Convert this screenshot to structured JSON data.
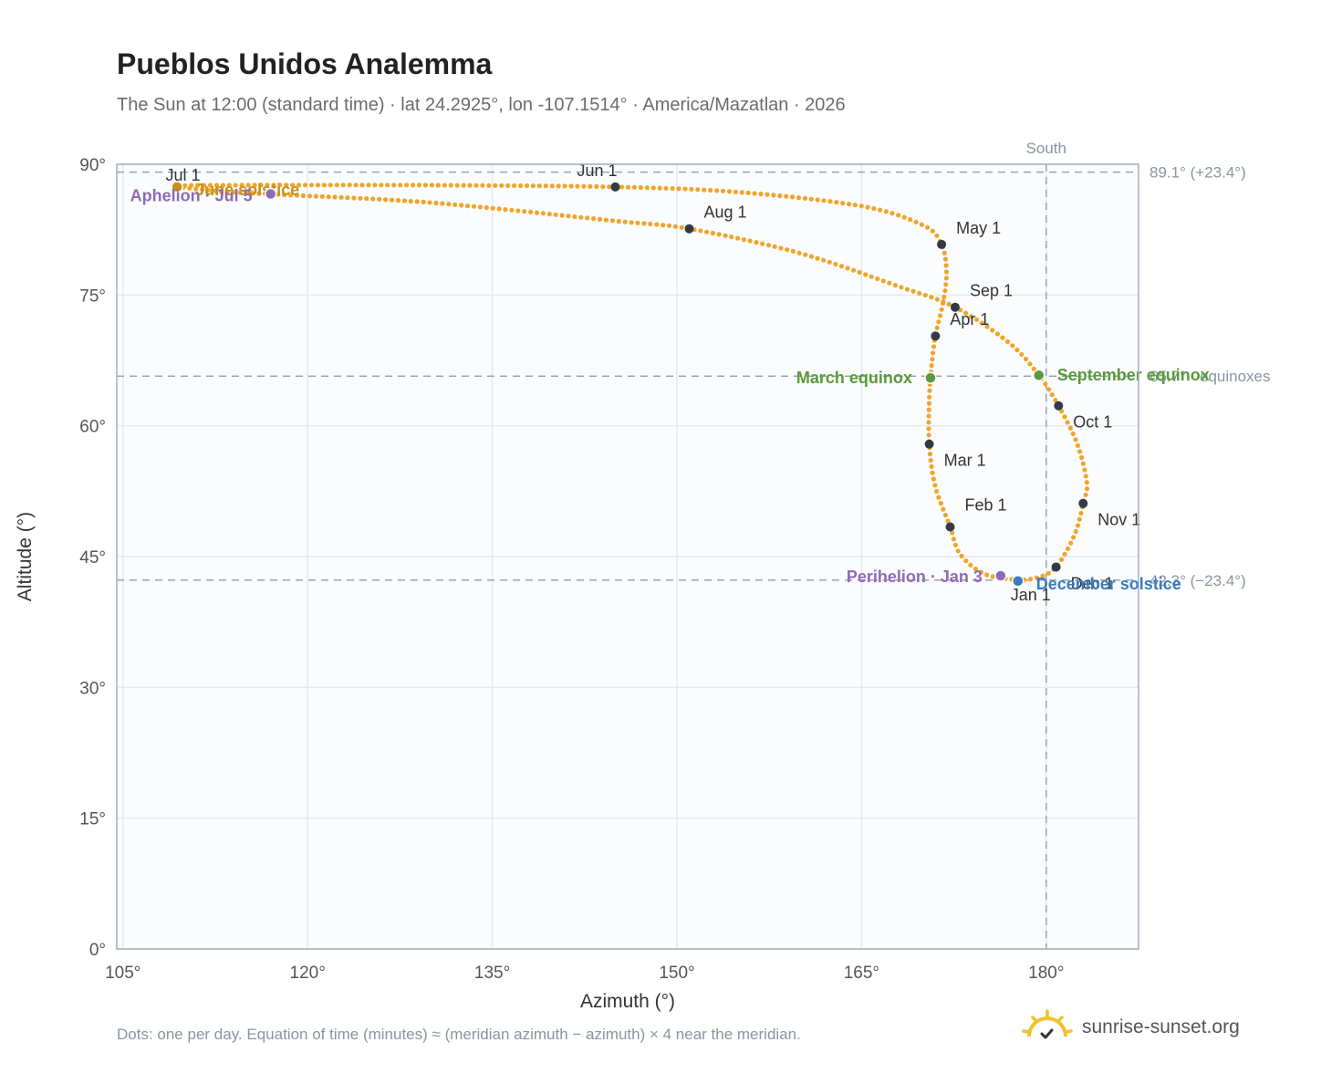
{
  "header": {
    "title": "Pueblos Unidos Analemma",
    "subtitle": "The Sun at 12:00 (standard time) · lat 24.2925°, lon -107.1514° · America/Mazatlan · 2026"
  },
  "footer": {
    "note": "Dots: one per day. Equation of time (minutes) ≈ (meridian azimuth − azimuth) × 4 near the meridian.",
    "brand": "sunrise-sunset.org"
  },
  "colors": {
    "curve": "#f0a52a",
    "month_dot": "#333a44",
    "equinox": "#5a9a3a",
    "december_solstice": "#3a7cc0",
    "june_solstice": "#c8901c",
    "apsis": "#8e6bb5",
    "reference": "#9aa3ae"
  },
  "chart_data": {
    "type": "scatter",
    "xlabel": "Azimuth (°)",
    "ylabel": "Altitude (°)",
    "xlim": [
      104.5,
      187.5
    ],
    "ylim": [
      0,
      90
    ],
    "x_ticks": [
      105,
      120,
      135,
      150,
      165,
      180
    ],
    "y_ticks": [
      0,
      15,
      30,
      45,
      60,
      75,
      90
    ],
    "x_tick_labels": [
      "105°",
      "120°",
      "135°",
      "150°",
      "165°",
      "180°"
    ],
    "y_tick_labels": [
      "0°",
      "15°",
      "30°",
      "45°",
      "60°",
      "75°",
      "90°"
    ],
    "grid": true,
    "meridian": {
      "azimuth": 180,
      "label": "South"
    },
    "reference_lines": [
      {
        "altitude": 89.1,
        "label": "89.1° (+23.4°)"
      },
      {
        "altitude": 65.7,
        "label": "65.7° · equinoxes"
      },
      {
        "altitude": 42.3,
        "label": "42.3° (−23.4°)"
      }
    ],
    "months": [
      {
        "label": "Jan 1",
        "az": 177.7,
        "alt": 42.3
      },
      {
        "label": "Feb 1",
        "az": 172.2,
        "alt": 48.4
      },
      {
        "label": "Mar 1",
        "az": 170.5,
        "alt": 57.9
      },
      {
        "label": "Apr 1",
        "az": 171.0,
        "alt": 70.3
      },
      {
        "label": "May 1",
        "az": 171.5,
        "alt": 80.8
      },
      {
        "label": "Jun 1",
        "az": 145.0,
        "alt": 87.4
      },
      {
        "label": "Jul 1",
        "az": 109.5,
        "alt": 87.5
      },
      {
        "label": "Aug 1",
        "az": 151.0,
        "alt": 82.6
      },
      {
        "label": "Sep 1",
        "az": 172.6,
        "alt": 73.6
      },
      {
        "label": "Oct 1",
        "az": 181.0,
        "alt": 62.3
      },
      {
        "label": "Nov 1",
        "az": 183.0,
        "alt": 51.1
      },
      {
        "label": "Dec 1",
        "az": 180.8,
        "alt": 43.8
      }
    ],
    "events": [
      {
        "label": "March equinox",
        "az": 170.6,
        "alt": 65.5,
        "kind": "equinox"
      },
      {
        "label": "September equinox",
        "az": 179.4,
        "alt": 65.8,
        "kind": "equinox"
      },
      {
        "label": "June solstice",
        "az": 109.4,
        "alt": 87.4,
        "kind": "june"
      },
      {
        "label": "December solstice",
        "az": 177.7,
        "alt": 42.2,
        "kind": "december"
      },
      {
        "label": "Perihelion · Jan 3",
        "az": 176.3,
        "alt": 42.8,
        "kind": "apsis"
      },
      {
        "label": "Aphelion · Jul 5",
        "az": 117.0,
        "alt": 86.6,
        "kind": "apsis"
      }
    ],
    "curve_waypoints": [
      {
        "az": 177.7,
        "alt": 42.3
      },
      {
        "az": 175.0,
        "alt": 43.0
      },
      {
        "az": 173.0,
        "alt": 45.3
      },
      {
        "az": 172.2,
        "alt": 48.4
      },
      {
        "az": 171.0,
        "alt": 53.0
      },
      {
        "az": 170.5,
        "alt": 57.9
      },
      {
        "az": 170.5,
        "alt": 63.0
      },
      {
        "az": 170.7,
        "alt": 67.0
      },
      {
        "az": 171.0,
        "alt": 70.3
      },
      {
        "az": 171.6,
        "alt": 74.0
      },
      {
        "az": 171.9,
        "alt": 77.5
      },
      {
        "az": 171.5,
        "alt": 80.8
      },
      {
        "az": 170.0,
        "alt": 83.0
      },
      {
        "az": 165.0,
        "alt": 85.2
      },
      {
        "az": 155.0,
        "alt": 86.8
      },
      {
        "az": 145.0,
        "alt": 87.4
      },
      {
        "az": 130.0,
        "alt": 87.6
      },
      {
        "az": 115.0,
        "alt": 87.6
      },
      {
        "az": 109.5,
        "alt": 87.5
      },
      {
        "az": 113.0,
        "alt": 86.9
      },
      {
        "az": 118.0,
        "alt": 86.5
      },
      {
        "az": 130.0,
        "alt": 85.6
      },
      {
        "az": 145.0,
        "alt": 83.5
      },
      {
        "az": 151.0,
        "alt": 82.6
      },
      {
        "az": 160.0,
        "alt": 79.8
      },
      {
        "az": 168.0,
        "alt": 76.0
      },
      {
        "az": 172.6,
        "alt": 73.6
      },
      {
        "az": 177.0,
        "alt": 69.5
      },
      {
        "az": 179.4,
        "alt": 65.8
      },
      {
        "az": 181.0,
        "alt": 62.3
      },
      {
        "az": 182.5,
        "alt": 58.0
      },
      {
        "az": 183.3,
        "alt": 53.5
      },
      {
        "az": 183.0,
        "alt": 51.1
      },
      {
        "az": 182.3,
        "alt": 47.5
      },
      {
        "az": 180.8,
        "alt": 43.8
      },
      {
        "az": 179.3,
        "alt": 42.6
      },
      {
        "az": 177.7,
        "alt": 42.3
      }
    ]
  }
}
